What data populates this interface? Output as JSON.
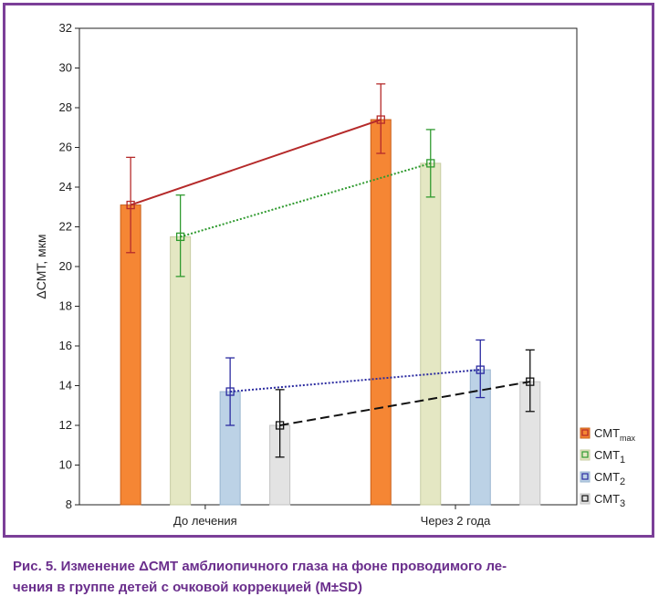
{
  "caption": {
    "line1": "Рис. 5. Изменение ΔСМТ амблиопичного глаза на фоне проводимого ле-",
    "line2": "чения в группе детей с очковой коррекцией (M±SD)"
  },
  "chart_data": {
    "type": "bar",
    "ylabel": "ΔСМТ, мкм",
    "xlabel": "",
    "ylim": [
      8,
      32
    ],
    "yticks": [
      8,
      10,
      12,
      14,
      16,
      18,
      20,
      22,
      24,
      26,
      28,
      30,
      32
    ],
    "categories": [
      "До лечения",
      "Через 2 года"
    ],
    "grid": false,
    "legend_position": "bottom-right",
    "series": [
      {
        "name": "СМТ",
        "subscript": "max",
        "values": [
          23.1,
          27.4
        ],
        "err_low": [
          20.7,
          25.7
        ],
        "err_high": [
          25.5,
          29.2
        ],
        "bar_color": "#f58634",
        "bar_edge": "#c9601a",
        "line_color": "#b52a2a",
        "line_style": "solid"
      },
      {
        "name": "СМТ",
        "subscript": "1",
        "values": [
          21.5,
          25.2
        ],
        "err_low": [
          19.5,
          23.5
        ],
        "err_high": [
          23.6,
          26.9
        ],
        "bar_color": "#e4e7c3",
        "bar_edge": "#c7cca2",
        "line_color": "#2f9a2f",
        "line_style": "dotted"
      },
      {
        "name": "СМТ",
        "subscript": "2",
        "values": [
          13.7,
          14.8
        ],
        "err_low": [
          12.0,
          13.4
        ],
        "err_high": [
          15.4,
          16.3
        ],
        "bar_color": "#bcd2e6",
        "bar_edge": "#98b4cf",
        "line_color": "#2b2ba0",
        "line_style": "dotted"
      },
      {
        "name": "СМТ",
        "subscript": "3",
        "values": [
          12.0,
          14.2
        ],
        "err_low": [
          10.4,
          12.7
        ],
        "err_high": [
          13.8,
          15.8
        ],
        "bar_color": "#e3e3e3",
        "bar_edge": "#c2c2c2",
        "line_color": "#111111",
        "line_style": "dashed"
      }
    ]
  }
}
